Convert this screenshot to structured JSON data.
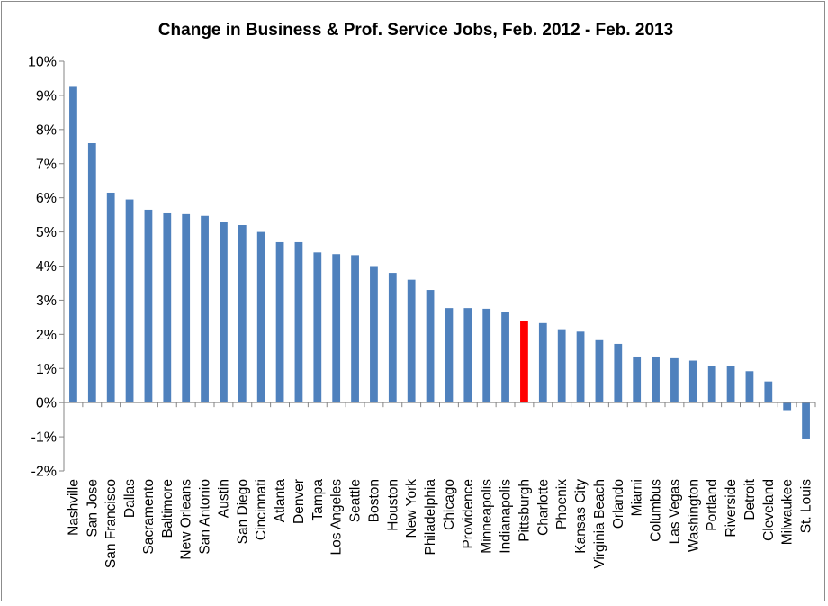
{
  "chart_data": {
    "type": "bar",
    "title": "Change in Business & Prof. Service Jobs, Feb. 2012 - Feb. 2013",
    "xlabel": "",
    "ylabel": "",
    "ylim": [
      -2,
      10
    ],
    "yticks": [
      -2,
      -1,
      0,
      1,
      2,
      3,
      4,
      5,
      6,
      7,
      8,
      9,
      10
    ],
    "ytick_labels": [
      "-2%",
      "-1%",
      "0%",
      "1%",
      "2%",
      "3%",
      "4%",
      "5%",
      "6%",
      "7%",
      "8%",
      "9%",
      "10%"
    ],
    "grid": false,
    "legend": "none",
    "bar_color": "#4f81bd",
    "highlight_color": "#ff0000",
    "highlight_category": "Pittsburgh",
    "categories": [
      "Nashville",
      "San Jose",
      "San Francisco",
      "Dallas",
      "Sacramento",
      "Baltimore",
      "New Orleans",
      "San Antonio",
      "Austin",
      "San Diego",
      "Cincinnati",
      "Atlanta",
      "Denver",
      "Tampa",
      "Los Angeles",
      "Seattle",
      "Boston",
      "Houston",
      "New York",
      "Philadelphia",
      "Chicago",
      "Providence",
      "Minneapolis",
      "Indianapolis",
      "Pittsburgh",
      "Charlotte",
      "Phoenix",
      "Kansas City",
      "Virginia Beach",
      "Orlando",
      "Miami",
      "Columbus",
      "Las Vegas",
      "Washington",
      "Portland",
      "Riverside",
      "Detroit",
      "Cleveland",
      "Milwaukee",
      "St. Louis"
    ],
    "values": [
      9.25,
      7.6,
      6.15,
      5.95,
      5.65,
      5.57,
      5.52,
      5.47,
      5.3,
      5.2,
      5.0,
      4.7,
      4.7,
      4.4,
      4.35,
      4.32,
      4.0,
      3.8,
      3.6,
      3.3,
      2.77,
      2.77,
      2.75,
      2.65,
      2.4,
      2.33,
      2.15,
      2.08,
      1.83,
      1.72,
      1.35,
      1.35,
      1.3,
      1.23,
      1.07,
      1.07,
      0.92,
      0.62,
      -0.22,
      -1.05
    ]
  }
}
